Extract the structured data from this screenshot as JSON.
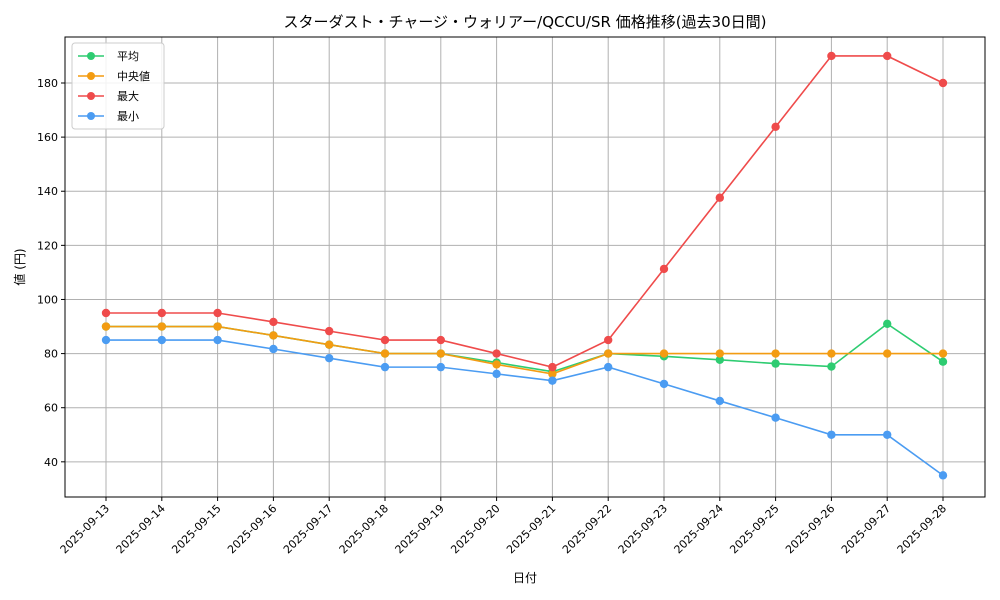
{
  "chart_data": {
    "type": "line",
    "title": "スターダスト・チャージ・ウォリアー/QCCU/SR 価格推移(過去30日間)",
    "xlabel": "日付",
    "ylabel": "値 (円)",
    "categories": [
      "2025-09-13",
      "2025-09-14",
      "2025-09-15",
      "2025-09-16",
      "2025-09-17",
      "2025-09-18",
      "2025-09-19",
      "2025-09-20",
      "2025-09-21",
      "2025-09-22",
      "2025-09-23",
      "2025-09-24",
      "2025-09-25",
      "2025-09-26",
      "2025-09-27",
      "2025-09-28"
    ],
    "ylim": [
      27,
      197
    ],
    "yticks": [
      40,
      60,
      80,
      100,
      120,
      140,
      160,
      180
    ],
    "grid": true,
    "legend_position": "top-left",
    "series": [
      {
        "name": "平均",
        "color": "#2ecc71",
        "values": [
          90,
          90,
          90,
          86.7,
          83.3,
          80,
          80,
          76.7,
          73.3,
          80,
          79,
          77.7,
          76.3,
          75.2,
          91,
          77
        ]
      },
      {
        "name": "中央値",
        "color": "#f39c12",
        "values": [
          90,
          90,
          90,
          86.7,
          83.3,
          80,
          80,
          76,
          72.5,
          80,
          80,
          80,
          80,
          80,
          80,
          80
        ]
      },
      {
        "name": "最大",
        "color": "#ef4b4b",
        "values": [
          95,
          95,
          95,
          91.7,
          88.3,
          85,
          85,
          80,
          75,
          85,
          111.3,
          137.6,
          163.8,
          190,
          190,
          180
        ]
      },
      {
        "name": "最小",
        "color": "#4b9cf2",
        "values": [
          85,
          85,
          85,
          81.7,
          78.3,
          75,
          75,
          72.5,
          70,
          75,
          68.8,
          62.5,
          56.3,
          50,
          50,
          35
        ]
      }
    ]
  }
}
